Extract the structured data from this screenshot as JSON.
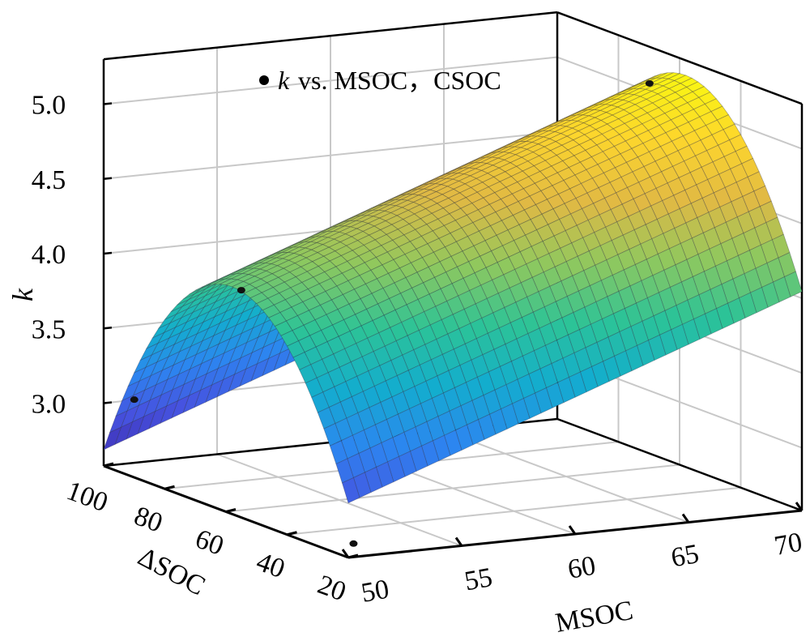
{
  "chart_data": {
    "type": "surface3d",
    "title": "",
    "xlabel": "MSOC",
    "ylabel": "ΔSOC",
    "zlabel": "k",
    "xlim": [
      50,
      70
    ],
    "ylim": [
      20,
      100
    ],
    "zlim": [
      2.58,
      5.3
    ],
    "xticks": [
      "50",
      "55",
      "60",
      "65",
      "70"
    ],
    "yticks": [
      "20",
      "40",
      "60",
      "80",
      "100"
    ],
    "zticks": [
      "3.0",
      "3.5",
      "4.0",
      "4.5",
      "5.0"
    ],
    "grid": true,
    "legend": {
      "placement": "top-center",
      "entries": [
        {
          "marker": "k",
          "text": "vs. MSOC，CSOC"
        }
      ]
    },
    "surface_model": {
      "peak_k_at_msoc50": 4.1,
      "slope_per_msoc": 0.055,
      "ridge_dsoc": 58,
      "curvature": 0.0008
    },
    "points": [
      {
        "msoc": 50,
        "dsoc": 90,
        "k": 3.1
      },
      {
        "msoc": 50,
        "dsoc": 55,
        "k": 4.1
      },
      {
        "msoc": 50.5,
        "dsoc": 22,
        "k": 2.65
      },
      {
        "msoc": 68,
        "dsoc": 55,
        "k": 5.2
      }
    ],
    "colormap": [
      "#3e26a8",
      "#4653e0",
      "#2c86f0",
      "#13adce",
      "#2cc397",
      "#8fc85e",
      "#e1b944",
      "#fdd62c",
      "#f9fb0e"
    ]
  }
}
